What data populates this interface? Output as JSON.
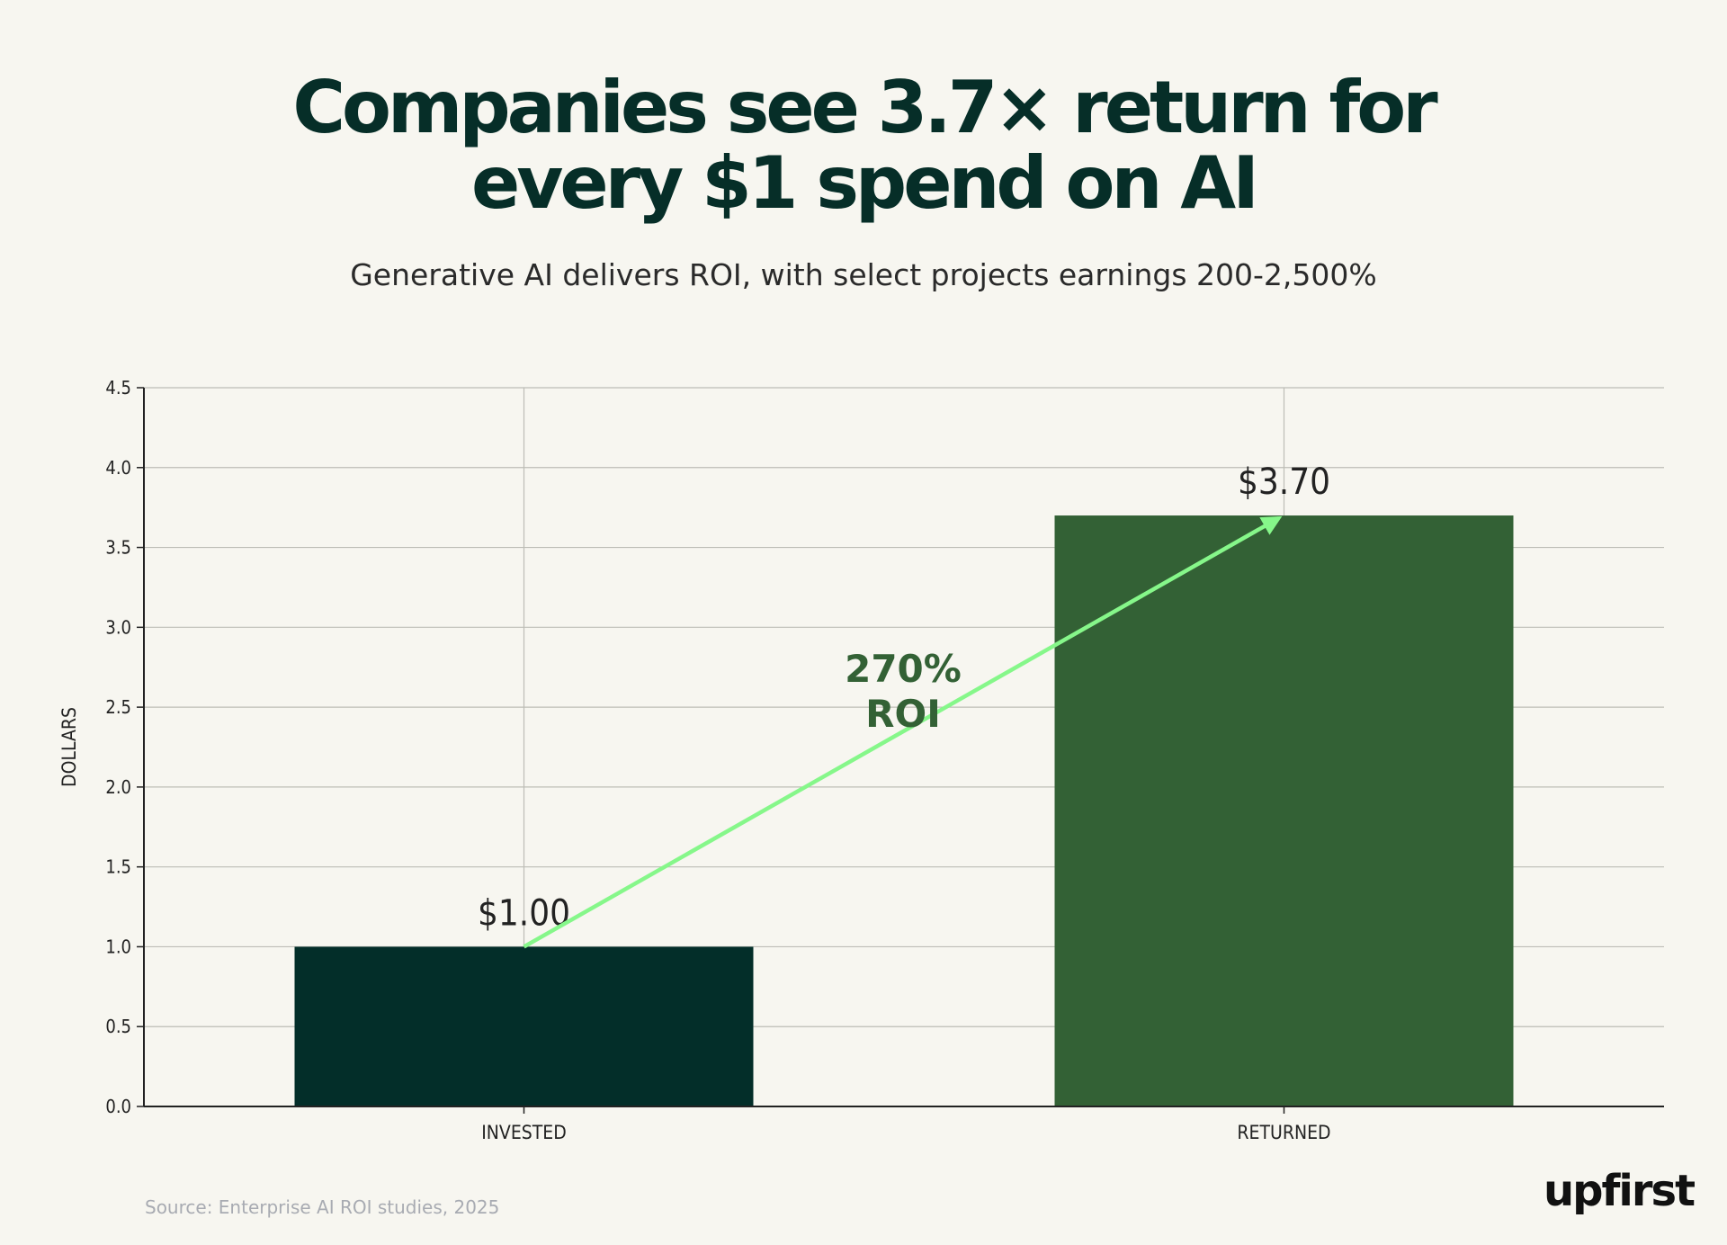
{
  "title_line1": "Companies see 3.7× return for",
  "title_line2": "every $1 spend on AI",
  "subtitle": "Generative AI delivers ROI, with select projects earnings 200-2,500%",
  "source": "Source: Enterprise AI ROI studies, 2025",
  "logo": "upfirst",
  "colors": {
    "background": "#f7f6f0",
    "invested": "#032e29",
    "returned": "#336135",
    "arrow": "#86f78a",
    "annotation": "#336135"
  },
  "chart_data": {
    "type": "bar",
    "categories": [
      "INVESTED",
      "RETURNED"
    ],
    "values": [
      1.0,
      3.7
    ],
    "value_labels": [
      "$1.00",
      "$3.70"
    ],
    "ylabel": "DOLLARS",
    "ylim": [
      0,
      4.5
    ],
    "yticks": [
      "0.0",
      "0.5",
      "1.0",
      "1.5",
      "2.0",
      "2.5",
      "3.0",
      "3.5",
      "4.0",
      "4.5"
    ],
    "grid": true,
    "annotation": {
      "line1": "270%",
      "line2": "ROI",
      "from": {
        "category": "INVESTED",
        "value": 1.0
      },
      "to": {
        "category": "RETURNED",
        "value": 3.7
      }
    }
  }
}
